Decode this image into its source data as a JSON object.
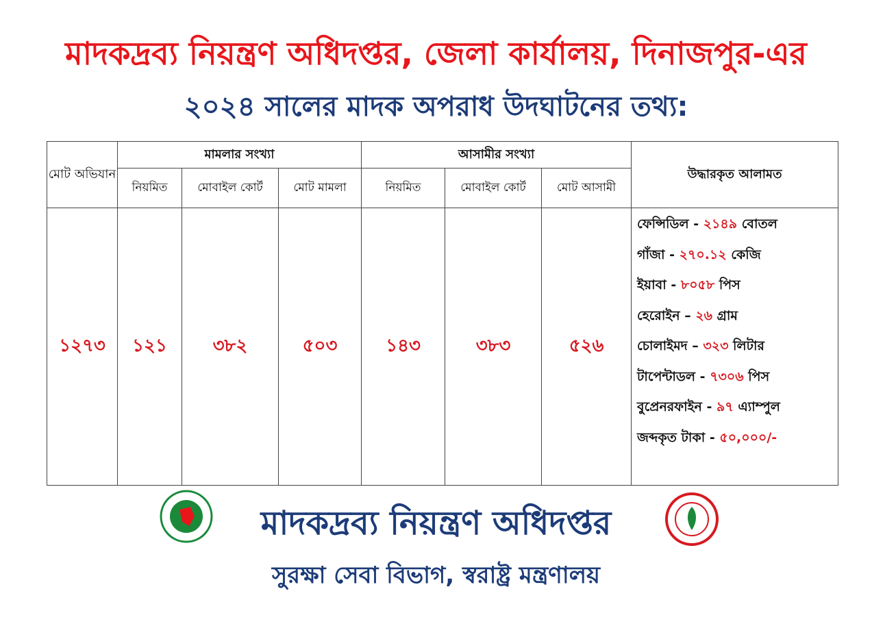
{
  "header": {
    "title_line1": "মাদকদ্রব্য নিয়ন্ত্রণ অধিদপ্তর, জেলা কার্যালয়, দিনাজপুর-এর",
    "title_line2": "২০২৪ সালের মাদক অপরাধ উদঘাটনের তথ্য:"
  },
  "table": {
    "headers": {
      "total_drives": "মোট অভিযান",
      "cases": {
        "label": "মামলার সংখ্যা",
        "sub": [
          "নিয়মিত",
          "মোবাইল কোর্ট",
          "মোট মামলা"
        ]
      },
      "accused": {
        "label": "আসামীর সংখ্যা",
        "sub": [
          "নিয়মিত",
          "মোবাইল কোর্ট",
          "মোট আসামী"
        ]
      },
      "recovered": "উদ্ধারকৃত আলামত"
    },
    "row": [
      "১২৭৩",
      "১২১",
      "৩৮২",
      "৫০৩",
      "১৪৩",
      "৩৮৩",
      "৫২৬"
    ],
    "recovered_items": [
      {
        "name": "ফেন্সিডিল",
        "sep": "-",
        "amount": "২১৪৯",
        "unit": "বোতল"
      },
      {
        "name": "গাঁজা",
        "sep": "-",
        "amount": "২৭০.১২",
        "unit": "কেজি"
      },
      {
        "name": "ইয়াবা",
        "sep": "-",
        "amount": "৮০৫৮",
        "unit": "পিস"
      },
      {
        "name": "হেরোইন",
        "sep": "–",
        "amount": "২৬",
        "unit": "গ্রাম"
      },
      {
        "name": "চোলাইমদ",
        "sep": "–",
        "amount": "৩২৩",
        "unit": "লিটার"
      },
      {
        "name": "টাপেন্টাডল",
        "sep": "-",
        "amount": "৭৩০৬",
        "unit": "পিস"
      },
      {
        "name": "বুপ্রেনরফাইন",
        "sep": "-",
        "amount": "৯৭",
        "unit": "এ্যাম্পুল"
      },
      {
        "name": "জব্দকৃত টাকা",
        "sep": "-",
        "amount": "৫০,০০০/-"
      }
    ]
  },
  "footer": {
    "org": "মাদকদ্রব্য নিয়ন্ত্রণ অধিদপ্তর",
    "ministry": "সুরক্ষা সেবা বিভাগ, স্বরাষ্ট্র মন্ত্রণালয়"
  }
}
